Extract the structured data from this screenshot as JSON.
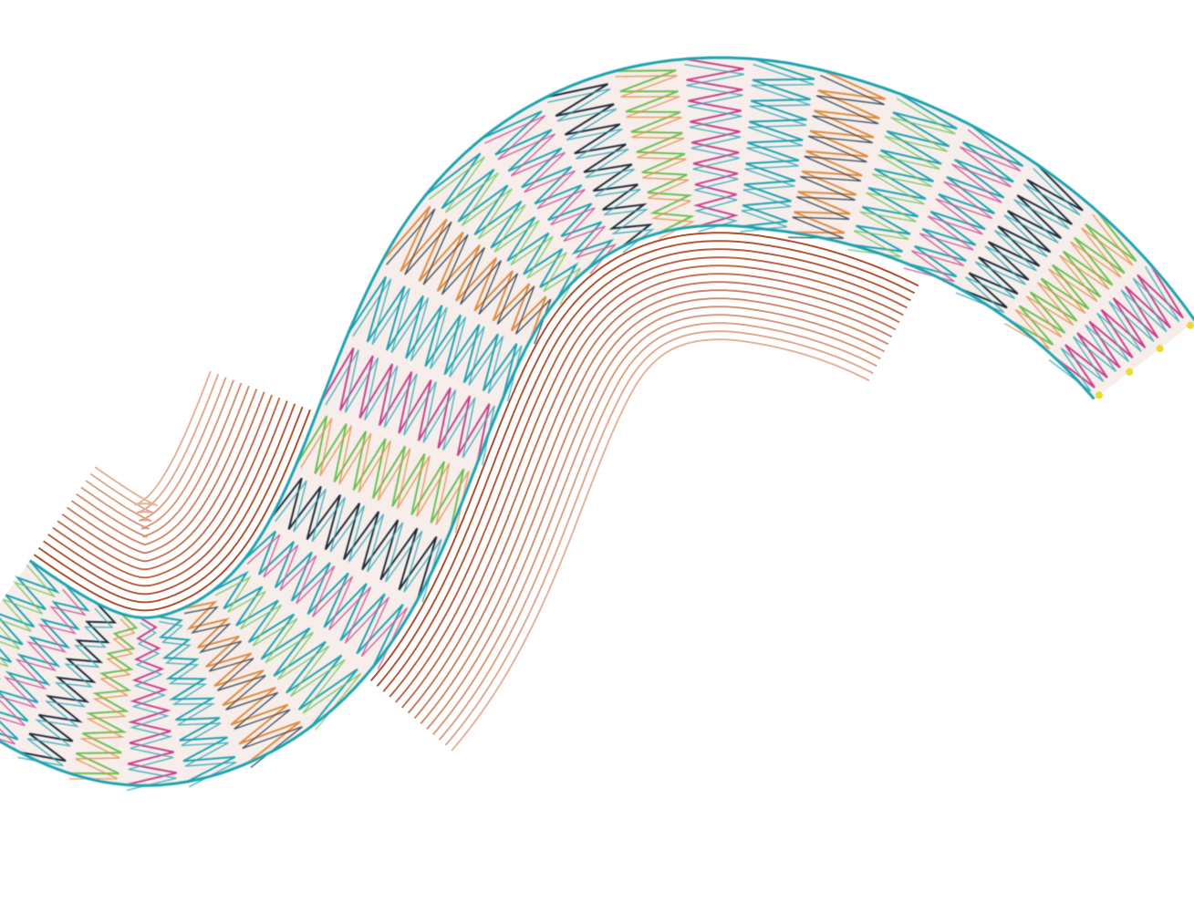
{
  "image": {
    "subject": "stent",
    "colors": {
      "background": "#ffffff",
      "fabric": "#f7eeec",
      "wire_primary": "#1fa3b0",
      "wire_dark": "#1b2d3a",
      "wire_accent_green": "#6cbf4f",
      "wire_accent_magenta": "#c8408a",
      "wire_accent_orange": "#e08a3c",
      "contour_dark": "#b0502f",
      "contour_light": "#e6b49c",
      "marker": "#e9dc2c"
    }
  }
}
